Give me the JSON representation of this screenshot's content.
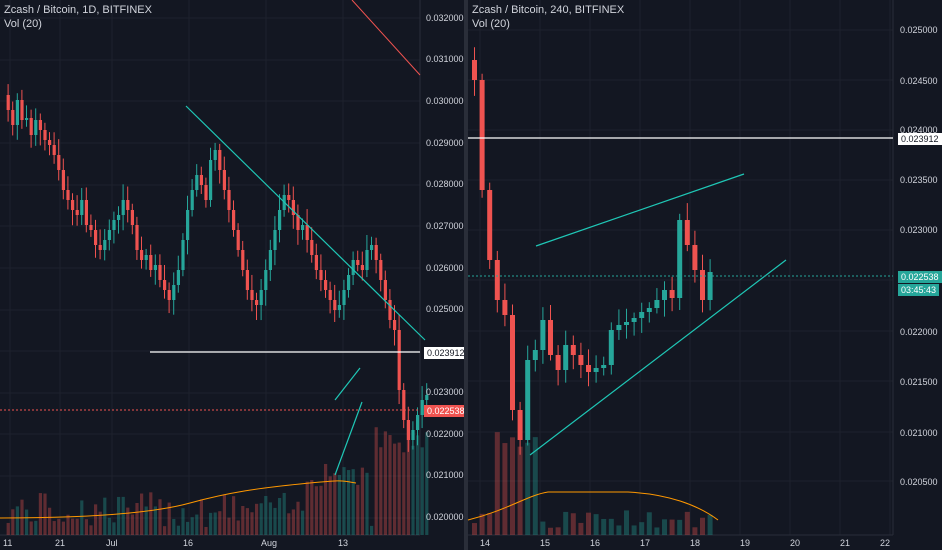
{
  "left": {
    "title": "Zcash / Bitcoin, 1D, BITFINEX",
    "vol_label": "Vol (20)",
    "price_ticks": [
      "0.032000",
      "0.031000",
      "0.030000",
      "0.029000",
      "0.028000",
      "0.027000",
      "0.026000",
      "0.025000",
      "0.023000",
      "0.022000",
      "0.021000",
      "0.020000"
    ],
    "time_ticks": [
      "11",
      "21",
      "Jul",
      "16",
      "Aug",
      "13"
    ],
    "support_label": "0.023912",
    "price_label": "0.022538"
  },
  "right": {
    "title": "Zcash / Bitcoin, 240, BITFINEX",
    "vol_label": "Vol (20)",
    "price_ticks": [
      "0.025000",
      "0.024500",
      "0.024000",
      "0.023500",
      "0.023000",
      "0.022000",
      "0.021500",
      "0.021000",
      "0.020500"
    ],
    "time_ticks": [
      "14",
      "15",
      "16",
      "17",
      "18",
      "19",
      "20",
      "21",
      "22"
    ],
    "support_label": "0.023912",
    "price_label": "0.022538",
    "countdown": "03:45:43"
  },
  "colors": {
    "up": "#26a69a",
    "down": "#ef5350",
    "bg": "#131722",
    "trend": "#1fc7b6"
  }
}
